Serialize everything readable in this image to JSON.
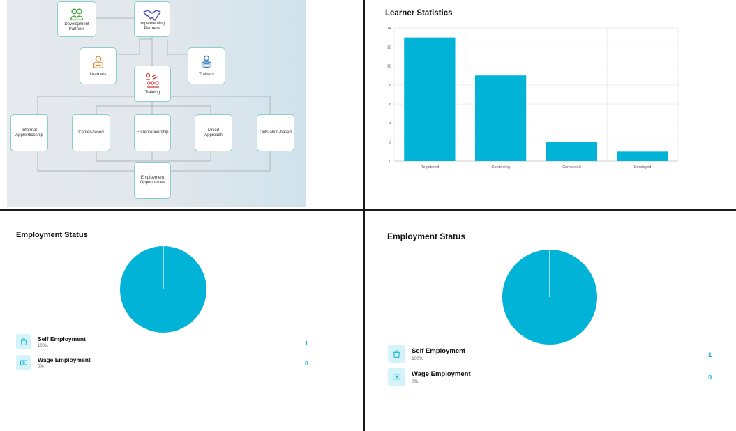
{
  "flowchart": {
    "development_partners": "Development Partners",
    "implementing_partners": "Implementing Partners",
    "learners": "Learners",
    "trainers": "Trainers",
    "training": "Training",
    "informal_apprenticeship": "Informal Apprenticeship",
    "center_based": "Center-based",
    "entrepreneurship": "Entrepreneurship",
    "mixed_approach": "Mixed Approach",
    "outstation_based": "Outstation-based",
    "employment_opportunities": "Employment Opportunities"
  },
  "learner_stats": {
    "title": "Learner Statistics",
    "chart_data": {
      "type": "bar",
      "categories": [
        "Registered",
        "Continuing",
        "Completed",
        "Employed"
      ],
      "values": [
        13,
        9,
        2,
        1
      ],
      "ylim": [
        0,
        14
      ],
      "yticks": [
        0,
        2,
        4,
        6,
        8,
        10,
        12,
        14
      ],
      "bar_color": "#00b3d7",
      "grid": true
    }
  },
  "employment_left": {
    "title": "Employment Status",
    "items": [
      {
        "name": "Self Employment",
        "pct": "100%",
        "count": "1",
        "icon": "bag-icon"
      },
      {
        "name": "Wage Employment",
        "pct": "0%",
        "count": "0",
        "icon": "cash-icon"
      }
    ],
    "chart_data": {
      "type": "pie",
      "categories": [
        "Self Employment",
        "Wage Employment"
      ],
      "values": [
        1,
        0
      ],
      "color": "#00b3d7"
    }
  },
  "employment_right": {
    "title": "Employment Status",
    "items": [
      {
        "name": "Self Employment",
        "pct": "100%",
        "count": "1",
        "icon": "bag-icon"
      },
      {
        "name": "Wage Employment",
        "pct": "0%",
        "count": "0",
        "icon": "cash-icon"
      }
    ],
    "chart_data": {
      "type": "pie",
      "categories": [
        "Self Employment",
        "Wage Employment"
      ],
      "values": [
        1,
        0
      ],
      "color": "#00b3d7"
    }
  },
  "colors": {
    "accent": "#00b3d7",
    "count": "#11b5d6",
    "node_border": "#8ccfca"
  }
}
